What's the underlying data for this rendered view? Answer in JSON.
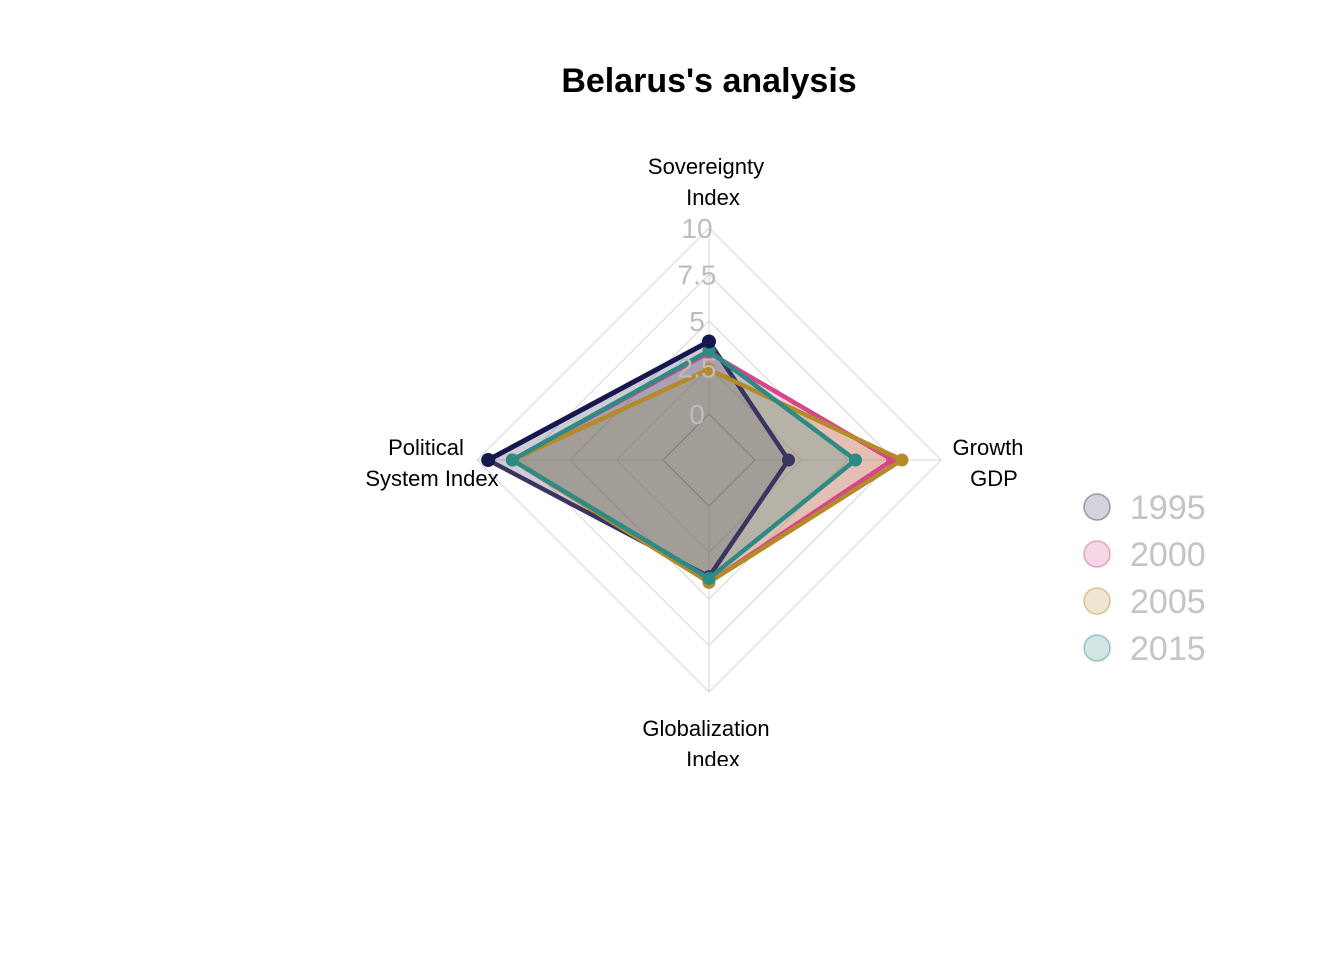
{
  "chart_data": {
    "type": "radar",
    "title": "Belarus's analysis",
    "axes": [
      "Sovereignty\nIndex",
      "Growth\nGDP",
      "Globalization\nIndex",
      "Political\nSystem Index"
    ],
    "range": [
      0,
      10
    ],
    "ticks": [
      "0",
      "2.5",
      "5",
      "7.5",
      "10"
    ],
    "tick_values": [
      0,
      2.5,
      5,
      7.5,
      10
    ],
    "grid": true,
    "legend_position": "right",
    "series": [
      {
        "name": "1995",
        "color": "#3a3560",
        "values": [
          3.9,
          1.8,
          3.8,
          9.4
        ]
      },
      {
        "name": "2000",
        "color": "#d6478a",
        "values": [
          3.3,
          7.4,
          4.1,
          8.1
        ]
      },
      {
        "name": "2005",
        "color": "#b58a2a",
        "values": [
          2.4,
          7.9,
          4.1,
          8.1
        ]
      },
      {
        "name": "2015",
        "color": "#2e8a84",
        "values": [
          3.4,
          5.4,
          3.9,
          8.1
        ]
      }
    ],
    "highlight": {
      "series": "1995",
      "color": "#15184f",
      "axes": [
        0,
        3
      ]
    }
  }
}
